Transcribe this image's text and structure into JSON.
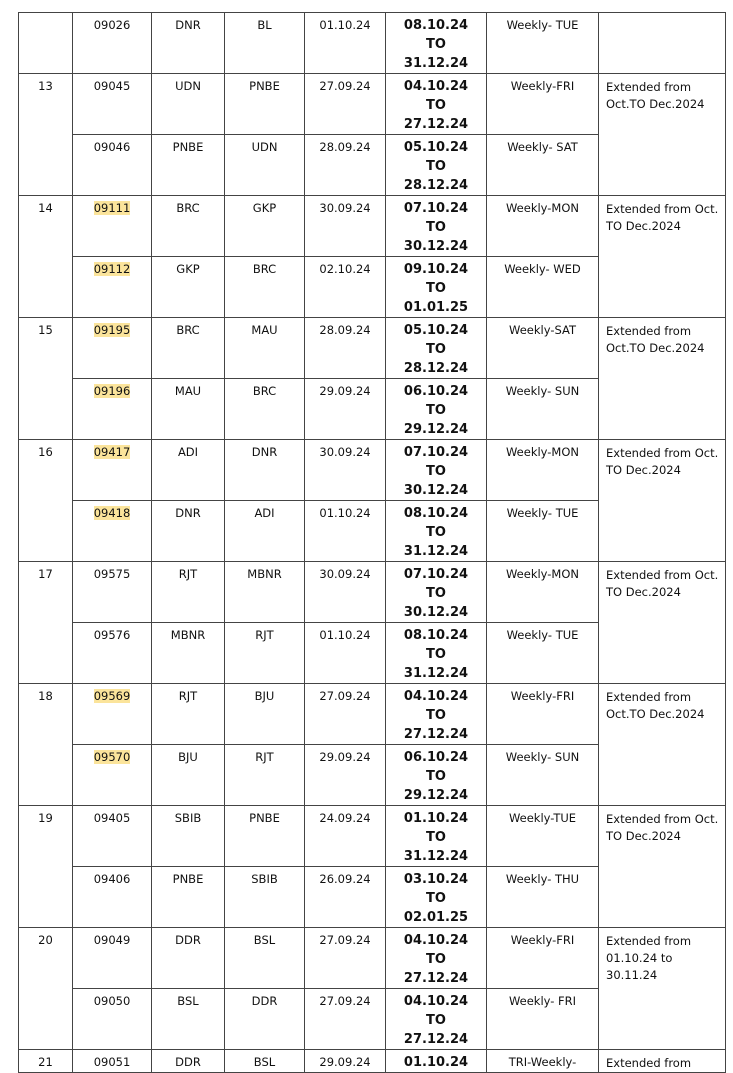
{
  "groups": [
    {
      "sno": "",
      "remark": "",
      "trains": [
        {
          "no": "09026",
          "from": "DNR",
          "to": "BL",
          "notified": "01.10.24",
          "start": "08.10.24",
          "sep": "TO",
          "end": "31.12.24",
          "freq": "Weekly- TUE",
          "highlight": false
        }
      ]
    },
    {
      "sno": "13",
      "remark": "Extended from Oct.TO Dec.2024",
      "trains": [
        {
          "no": "09045",
          "from": "UDN",
          "to": "PNBE",
          "notified": "27.09.24",
          "start": "04.10.24",
          "sep": "TO",
          "end": "27.12.24",
          "freq": "Weekly-FRI",
          "highlight": false
        },
        {
          "no": "09046",
          "from": "PNBE",
          "to": "UDN",
          "notified": "28.09.24",
          "start": "05.10.24",
          "sep": "TO",
          "end": "28.12.24",
          "freq": "Weekly- SAT",
          "highlight": false
        }
      ]
    },
    {
      "sno": "14",
      "remark": "Extended from Oct. TO Dec.2024",
      "trains": [
        {
          "no": "09111",
          "from": "BRC",
          "to": "GKP",
          "notified": "30.09.24",
          "start": "07.10.24",
          "sep": "TO",
          "end": "30.12.24",
          "freq": "Weekly-MON",
          "highlight": true
        },
        {
          "no": "09112",
          "from": "GKP",
          "to": "BRC",
          "notified": "02.10.24",
          "start": "09.10.24",
          "sep": "TO",
          "end": "01.01.25",
          "freq": "Weekly- WED",
          "highlight": true
        }
      ]
    },
    {
      "sno": "15",
      "remark": "Extended from Oct.TO Dec.2024",
      "trains": [
        {
          "no": "09195",
          "from": "BRC",
          "to": "MAU",
          "notified": "28.09.24",
          "start": "05.10.24",
          "sep": "TO",
          "end": "28.12.24",
          "freq": "Weekly-SAT",
          "highlight": true
        },
        {
          "no": "09196",
          "from": "MAU",
          "to": "BRC",
          "notified": "29.09.24",
          "start": "06.10.24",
          "sep": "TO",
          "end": "29.12.24",
          "freq": "Weekly- SUN",
          "highlight": true
        }
      ]
    },
    {
      "sno": "16",
      "remark": "Extended from Oct. TO Dec.2024",
      "trains": [
        {
          "no": "09417",
          "from": "ADI",
          "to": "DNR",
          "notified": "30.09.24",
          "start": "07.10.24",
          "sep": "TO",
          "end": "30.12.24",
          "freq": "Weekly-MON",
          "highlight": true
        },
        {
          "no": "09418",
          "from": "DNR",
          "to": "ADI",
          "notified": "01.10.24",
          "start": "08.10.24",
          "sep": "TO",
          "end": "31.12.24",
          "freq": "Weekly- TUE",
          "highlight": true
        }
      ]
    },
    {
      "sno": "17",
      "remark": "Extended from Oct. TO Dec.2024",
      "trains": [
        {
          "no": "09575",
          "from": "RJT",
          "to": "MBNR",
          "notified": "30.09.24",
          "start": "07.10.24",
          "sep": "TO",
          "end": "30.12.24",
          "freq": "Weekly-MON",
          "highlight": false
        },
        {
          "no": "09576",
          "from": "MBNR",
          "to": "RJT",
          "notified": "01.10.24",
          "start": "08.10.24",
          "sep": "TO",
          "end": "31.12.24",
          "freq": "Weekly- TUE",
          "highlight": false
        }
      ]
    },
    {
      "sno": "18",
      "remark": "Extended from Oct.TO Dec.2024",
      "trains": [
        {
          "no": "09569",
          "from": "RJT",
          "to": "BJU",
          "notified": "27.09.24",
          "start": "04.10.24",
          "sep": "TO",
          "end": "27.12.24",
          "freq": "Weekly-FRI",
          "highlight": true
        },
        {
          "no": "09570",
          "from": "BJU",
          "to": "RJT",
          "notified": "29.09.24",
          "start": "06.10.24",
          "sep": "TO",
          "end": "29.12.24",
          "freq": "Weekly- SUN",
          "highlight": true
        }
      ]
    },
    {
      "sno": "19",
      "remark": "Extended from Oct. TO Dec.2024",
      "trains": [
        {
          "no": "09405",
          "from": "SBIB",
          "to": "PNBE",
          "notified": "24.09.24",
          "start": "01.10.24",
          "sep": "TO",
          "end": "31.12.24",
          "freq": "Weekly-TUE",
          "highlight": false
        },
        {
          "no": "09406",
          "from": "PNBE",
          "to": "SBIB",
          "notified": "26.09.24",
          "start": "03.10.24",
          "sep": "TO",
          "end": "02.01.25",
          "freq": "Weekly- THU",
          "highlight": false
        }
      ]
    },
    {
      "sno": "20",
      "remark": "Extended from 01.10.24 to 30.11.24",
      "trains": [
        {
          "no": "09049",
          "from": "DDR",
          "to": "BSL",
          "notified": "27.09.24",
          "start": "04.10.24",
          "sep": "TO",
          "end": "27.12.24",
          "freq": "Weekly-FRI",
          "highlight": false
        },
        {
          "no": "09050",
          "from": "BSL",
          "to": "DDR",
          "notified": "27.09.24",
          "start": "04.10.24",
          "sep": "TO",
          "end": "27.12.24",
          "freq": "Weekly- FRI",
          "highlight": false
        }
      ]
    },
    {
      "sno": "21",
      "remark": "Extended from",
      "trains": [
        {
          "no": "09051",
          "from": "DDR",
          "to": "BSL",
          "notified": "29.09.24",
          "start": "01.10.24",
          "sep": "",
          "end": "",
          "freq": "TRI-Weekly-",
          "highlight": false
        }
      ]
    }
  ],
  "colors": {
    "highlight": "#fbe49b",
    "border": "#444444"
  }
}
